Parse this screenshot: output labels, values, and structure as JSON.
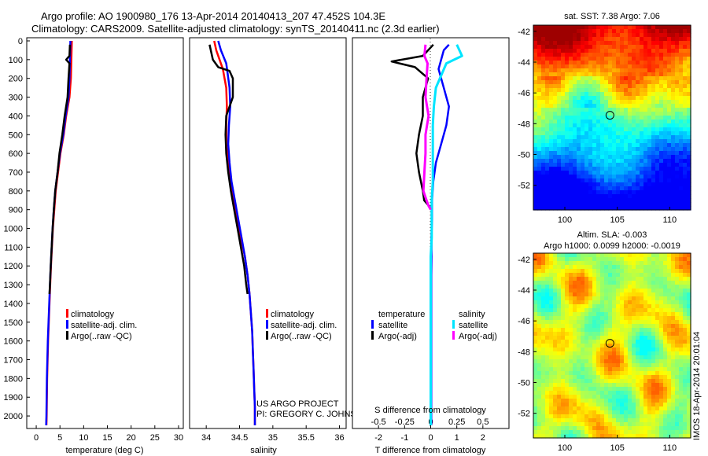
{
  "header": {
    "title_line1": "Argo profile: AO 1900980_176 13-Apr-2014 20140413_207 47.452S 104.3E",
    "title_line2": "Climatology: CARS2009. Satellite-adjusted climatology: synTS_20140411.nc (2.3d earlier)"
  },
  "credits": {
    "project": "US ARGO PROJECT",
    "pi": "PI: GREGORY C. JOHNSON",
    "stamp": "IMOS 18-Apr-2014 20:01:04"
  },
  "colors": {
    "climatology": "#ff0000",
    "satellite": "#0000ff",
    "argo": "#000000",
    "sal_satellite": "#00e5ff",
    "sal_argo": "#ff00ff"
  },
  "chart_data": [
    {
      "type": "line",
      "id": "temperature",
      "xlabel": "temperature (deg C)",
      "xlim": [
        -2,
        31
      ],
      "ylim": [
        0,
        2050
      ],
      "y_inverted": true,
      "xticks": [
        0,
        5,
        10,
        15,
        20,
        25,
        30
      ],
      "yticks": [
        0,
        100,
        200,
        300,
        400,
        500,
        600,
        700,
        800,
        900,
        1000,
        1100,
        1200,
        1300,
        1400,
        1500,
        1600,
        1700,
        1800,
        1900,
        2000
      ],
      "legend": [
        "climatology",
        "satellite-adj. clim.",
        "Argo(..raw -QC)"
      ],
      "series": [
        {
          "key": "climatology",
          "x": [
            7.5,
            7.4,
            7.3,
            7.0,
            6.3,
            5.8,
            5.1,
            4.6,
            4.1,
            3.8,
            3.5,
            3.3,
            3.1,
            2.95,
            2.8,
            2.65,
            2.5,
            2.4,
            2.3,
            2.25,
            2.2,
            2.15
          ],
          "y": [
            0,
            100,
            200,
            300,
            400,
            500,
            600,
            700,
            800,
            900,
            1000,
            1100,
            1200,
            1300,
            1400,
            1500,
            1600,
            1700,
            1800,
            1900,
            2000,
            2050
          ]
        },
        {
          "key": "satellite",
          "x": [
            7.2,
            7.1,
            7.0,
            6.8,
            6.2,
            5.7,
            5.0,
            4.5,
            4.0,
            3.7,
            3.45,
            3.25,
            3.05,
            2.9,
            2.75,
            2.6,
            2.45,
            2.35,
            2.25,
            2.2,
            2.15,
            2.1
          ],
          "y": [
            0,
            100,
            200,
            300,
            400,
            500,
            600,
            700,
            800,
            900,
            1000,
            1100,
            1200,
            1300,
            1400,
            1500,
            1600,
            1700,
            1800,
            1900,
            2000,
            2050
          ]
        },
        {
          "key": "argo",
          "x": [
            7.1,
            7.0,
            6.3,
            7.0,
            6.8,
            6.6,
            6.0,
            5.5,
            4.9,
            4.5,
            4.0,
            3.7,
            3.45,
            3.25,
            3.05,
            2.9,
            2.8
          ],
          "y": [
            20,
            80,
            100,
            120,
            200,
            300,
            400,
            500,
            600,
            700,
            800,
            900,
            1000,
            1100,
            1200,
            1300,
            1350
          ]
        }
      ]
    },
    {
      "type": "line",
      "id": "salinity",
      "xlabel": "salinity",
      "xlim": [
        33.75,
        36.1
      ],
      "ylim": [
        0,
        2050
      ],
      "y_inverted": true,
      "xticks": [
        34,
        34.5,
        35,
        35.5,
        36
      ],
      "xticklabels": [
        "34",
        "34.5",
        "35",
        "35.5",
        "36"
      ],
      "legend": [
        "climatology",
        "satellite-adj. clim.",
        "Argo(..raw -QC)"
      ],
      "series": [
        {
          "key": "climatology",
          "x": [
            34.12,
            34.15,
            34.25,
            34.3,
            34.31,
            34.3,
            34.3,
            34.33,
            34.37,
            34.42,
            34.47,
            34.52,
            34.58,
            34.62,
            34.65,
            34.67,
            34.69,
            34.7,
            34.71,
            34.72,
            34.73,
            34.73
          ],
          "y": [
            0,
            50,
            150,
            250,
            350,
            450,
            550,
            650,
            750,
            850,
            950,
            1050,
            1150,
            1250,
            1350,
            1450,
            1550,
            1650,
            1750,
            1850,
            1950,
            2050
          ]
        },
        {
          "key": "satellite",
          "x": [
            34.18,
            34.22,
            34.3,
            34.35,
            34.36,
            34.34,
            34.33,
            34.35,
            34.38,
            34.43,
            34.48,
            34.53,
            34.58,
            34.62,
            34.65,
            34.67,
            34.69,
            34.7,
            34.71,
            34.72,
            34.73,
            34.73
          ],
          "y": [
            0,
            50,
            120,
            250,
            350,
            450,
            550,
            650,
            750,
            850,
            950,
            1050,
            1150,
            1250,
            1350,
            1450,
            1550,
            1650,
            1750,
            1850,
            1950,
            2050
          ]
        },
        {
          "key": "argo",
          "x": [
            34.05,
            34.1,
            34.18,
            34.35,
            34.4,
            34.4,
            34.3,
            34.29,
            34.3,
            34.33,
            34.37,
            34.42,
            34.47,
            34.52,
            34.57,
            34.6,
            34.62
          ],
          "y": [
            20,
            100,
            140,
            160,
            200,
            300,
            400,
            500,
            600,
            700,
            800,
            900,
            1000,
            1100,
            1200,
            1300,
            1350
          ]
        }
      ]
    },
    {
      "type": "line",
      "id": "difference",
      "xlabel": "T difference from climatology",
      "xlabel_top": "S difference from climatology",
      "xlim": [
        -3.0,
        3.0
      ],
      "xlim_salinity": [
        -0.75,
        0.75
      ],
      "ylim": [
        0,
        2050
      ],
      "y_inverted": true,
      "xticks": [
        -2,
        -1,
        0,
        1,
        2
      ],
      "xticks_salinity": [
        -0.5,
        -0.25,
        0,
        0.25,
        0.5
      ],
      "xticklabels_salinity": [
        "-0.5",
        "-0.25",
        "0",
        "0.25",
        "0.5"
      ],
      "legend_temperature_title": "temperature",
      "legend_salinity_title": "salinity",
      "legend": [
        "satellite",
        "Argo(-adj)"
      ],
      "series": [
        {
          "key": "T-satellite",
          "x": [
            0.7,
            0.5,
            0.3,
            0.5,
            0.7,
            0.6,
            0.4,
            0.2,
            0.1,
            0.05,
            0.05,
            0.03,
            0.03,
            0.02,
            0.02,
            0.02,
            0.02,
            0.02,
            0.02,
            0.02,
            0.02
          ],
          "y": [
            20,
            50,
            150,
            250,
            350,
            450,
            550,
            650,
            750,
            850,
            950,
            1050,
            1150,
            1250,
            1350,
            1450,
            1550,
            1650,
            1750,
            1850,
            2050
          ]
        },
        {
          "key": "T-argo",
          "x": [
            0.1,
            -0.3,
            -1.5,
            -0.6,
            -0.1,
            -0.3,
            -0.3,
            -0.45,
            -0.55,
            -0.45,
            -0.3,
            -0.25,
            0.05
          ],
          "y": [
            20,
            80,
            110,
            140,
            200,
            300,
            400,
            500,
            600,
            700,
            800,
            850,
            900
          ]
        },
        {
          "key": "S-satellite",
          "x": [
            0.25,
            0.3,
            0.15,
            0.05,
            0.03,
            0.02,
            0.02,
            0.02,
            0.02,
            0.01,
            0.01,
            0.01,
            0.0,
            0.0,
            0.0,
            0.0,
            0.0,
            0.0,
            0.0,
            0.0,
            0.0
          ],
          "y": [
            20,
            80,
            120,
            250,
            350,
            450,
            550,
            650,
            750,
            850,
            950,
            1050,
            1150,
            1250,
            1350,
            1450,
            1550,
            1650,
            1750,
            1850,
            2050
          ]
        },
        {
          "key": "S-argo",
          "x": [
            -0.05,
            -0.06,
            -0.03,
            -0.04,
            -0.05,
            -0.02,
            -0.05,
            -0.05,
            -0.06,
            -0.07,
            -0.04,
            -0.02,
            0.0
          ],
          "y": [
            20,
            80,
            120,
            200,
            300,
            400,
            500,
            600,
            700,
            800,
            850,
            880,
            900
          ]
        }
      ]
    },
    {
      "type": "heatmap",
      "id": "sst-map",
      "title": "sat. SST: 7.38 Argo: 7.06",
      "xlim": [
        97,
        112
      ],
      "ylim": [
        -53.6,
        -41.6
      ],
      "xticks": [
        100,
        105,
        110
      ],
      "yticks": [
        -42,
        -44,
        -46,
        -48,
        -50,
        -52
      ],
      "marker": {
        "lon": 104.3,
        "lat": -47.452
      }
    },
    {
      "type": "heatmap",
      "id": "sla-map",
      "title": "Altim. SLA: -0.003",
      "subtitle": "Argo h1000: 0.0099 h2000: -0.0019",
      "xlim": [
        97,
        112
      ],
      "ylim": [
        -53.6,
        -41.6
      ],
      "xticks": [
        100,
        105,
        110
      ],
      "yticks": [
        -42,
        -44,
        -46,
        -48,
        -50,
        -52
      ],
      "marker": {
        "lon": 104.3,
        "lat": -47.452
      }
    }
  ]
}
